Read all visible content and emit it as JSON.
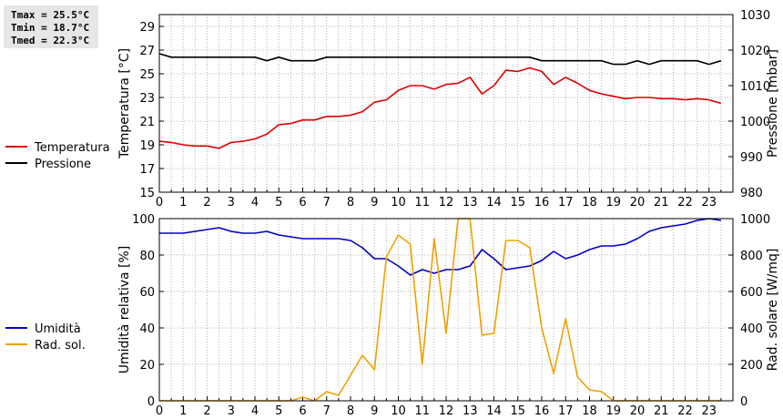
{
  "stats": {
    "tmax": "Tmax = 25.5°C",
    "tmin": "Tmin = 18.7°C",
    "tmed": "Tmed = 22.3°C"
  },
  "chart_data": [
    {
      "type": "line",
      "xlim": [
        0,
        24
      ],
      "x_ticks": [
        "0",
        "1",
        "2",
        "3",
        "4",
        "5",
        "6",
        "7",
        "8",
        "9",
        "10",
        "11",
        "12",
        "13",
        "14",
        "15",
        "16",
        "17",
        "18",
        "19",
        "20",
        "21",
        "22",
        "23"
      ],
      "ylabel": "Temperatura [°C]",
      "ylim": [
        15,
        30
      ],
      "y_ticks": [
        "15",
        "17",
        "19",
        "21",
        "23",
        "25",
        "27",
        "29"
      ],
      "y2label": "Pressione [mbar]",
      "y2lim": [
        980,
        1030
      ],
      "y2_ticks": [
        "980",
        "990",
        "1000",
        "1010",
        "1020",
        "1030"
      ],
      "grid": true,
      "legend": "left",
      "series": [
        {
          "name": "Temperatura",
          "color": "#e00000",
          "axis": "left",
          "x": [
            0,
            0.5,
            1,
            1.5,
            2,
            2.5,
            3,
            3.5,
            4,
            4.5,
            5,
            5.5,
            6,
            6.5,
            7,
            7.5,
            8,
            8.5,
            9,
            9.5,
            10,
            10.5,
            11,
            11.5,
            12,
            12.5,
            13,
            13.5,
            14,
            14.5,
            15,
            15.5,
            16,
            16.5,
            17,
            17.5,
            18,
            18.5,
            19,
            19.5,
            20,
            20.5,
            21,
            21.5,
            22,
            22.5,
            23,
            23.5
          ],
          "values": [
            19.3,
            19.2,
            19.0,
            18.9,
            18.9,
            18.7,
            19.2,
            19.3,
            19.5,
            19.9,
            20.7,
            20.8,
            21.1,
            21.1,
            21.4,
            21.4,
            21.5,
            21.8,
            22.6,
            22.8,
            23.6,
            24.0,
            24.0,
            23.7,
            24.1,
            24.2,
            24.7,
            23.3,
            24.0,
            25.3,
            25.2,
            25.5,
            25.2,
            24.1,
            24.7,
            24.2,
            23.6,
            23.3,
            23.1,
            22.9,
            23.0,
            23.0,
            22.9,
            22.9,
            22.8,
            22.9,
            22.8,
            22.5
          ]
        },
        {
          "name": "Pressione",
          "color": "#000000",
          "axis": "right",
          "x": [
            0,
            0.5,
            1,
            1.5,
            2,
            2.5,
            3,
            3.5,
            4,
            4.5,
            5,
            5.5,
            6,
            6.5,
            7,
            7.5,
            8,
            8.5,
            9,
            9.5,
            10,
            10.5,
            11,
            11.5,
            12,
            12.5,
            13,
            13.5,
            14,
            14.5,
            15,
            15.5,
            16,
            16.5,
            17,
            17.5,
            18,
            18.5,
            19,
            19.5,
            20,
            20.5,
            21,
            21.5,
            22,
            22.5,
            23,
            23.5
          ],
          "values": [
            1019,
            1018,
            1018,
            1018,
            1018,
            1018,
            1018,
            1018,
            1018,
            1017,
            1018,
            1017,
            1017,
            1017,
            1018,
            1018,
            1018,
            1018,
            1018,
            1018,
            1018,
            1018,
            1018,
            1018,
            1018,
            1018,
            1018,
            1018,
            1018,
            1018,
            1018,
            1018,
            1017,
            1017,
            1017,
            1017,
            1017,
            1017,
            1016,
            1016,
            1017,
            1016,
            1017,
            1017,
            1017,
            1017,
            1016,
            1017
          ]
        }
      ]
    },
    {
      "type": "line",
      "xlim": [
        0,
        24
      ],
      "x_ticks": [
        "0",
        "1",
        "2",
        "3",
        "4",
        "5",
        "6",
        "7",
        "8",
        "9",
        "10",
        "11",
        "12",
        "13",
        "14",
        "15",
        "16",
        "17",
        "18",
        "19",
        "20",
        "21",
        "22",
        "23"
      ],
      "ylabel": "Umidità relativa [%]",
      "ylim": [
        0,
        100
      ],
      "y_ticks": [
        "0",
        "20",
        "40",
        "60",
        "80",
        "100"
      ],
      "y2label": "Rad. solare [W/mq]",
      "y2lim": [
        0,
        1000
      ],
      "y2_ticks": [
        "0",
        "200",
        "400",
        "600",
        "800",
        "1000"
      ],
      "grid": true,
      "legend": "left",
      "series": [
        {
          "name": "Umidità",
          "color": "#0000c8",
          "axis": "left",
          "x": [
            0,
            0.5,
            1,
            1.5,
            2,
            2.5,
            3,
            3.5,
            4,
            4.5,
            5,
            5.5,
            6,
            6.5,
            7,
            7.5,
            8,
            8.5,
            9,
            9.5,
            10,
            10.5,
            11,
            11.5,
            12,
            12.5,
            13,
            13.5,
            14,
            14.5,
            15,
            15.5,
            16,
            16.5,
            17,
            17.5,
            18,
            18.5,
            19,
            19.5,
            20,
            20.5,
            21,
            21.5,
            22,
            22.5,
            23,
            23.5
          ],
          "values": [
            92,
            92,
            92,
            93,
            94,
            95,
            93,
            92,
            92,
            93,
            91,
            90,
            89,
            89,
            89,
            89,
            88,
            84,
            78,
            78,
            74,
            69,
            72,
            70,
            72,
            72,
            74,
            83,
            78,
            72,
            73,
            74,
            77,
            82,
            78,
            80,
            83,
            85,
            85,
            86,
            89,
            93,
            95,
            96,
            97,
            99,
            100,
            99
          ]
        },
        {
          "name": "Rad. sol.",
          "color": "#f0a000",
          "axis": "right",
          "x": [
            0,
            0.5,
            1,
            1.5,
            2,
            2.5,
            3,
            3.5,
            4,
            4.5,
            5,
            5.5,
            6,
            6.5,
            7,
            7.5,
            8,
            8.5,
            9,
            9.5,
            10,
            10.5,
            11,
            11.5,
            12,
            12.5,
            13,
            13.5,
            14,
            14.5,
            15,
            15.5,
            16,
            16.5,
            17,
            17.5,
            18,
            18.5,
            19,
            19.5,
            20,
            20.5,
            21,
            21.5,
            22,
            22.5,
            23,
            23.5
          ],
          "values": [
            0,
            0,
            0,
            0,
            0,
            0,
            0,
            0,
            0,
            0,
            0,
            0,
            20,
            0,
            50,
            30,
            140,
            250,
            170,
            790,
            910,
            860,
            200,
            890,
            370,
            1000,
            1000,
            360,
            370,
            880,
            880,
            840,
            400,
            150,
            450,
            130,
            60,
            50,
            0,
            0,
            0,
            0,
            0,
            0,
            0,
            0,
            0,
            0
          ]
        }
      ]
    }
  ]
}
